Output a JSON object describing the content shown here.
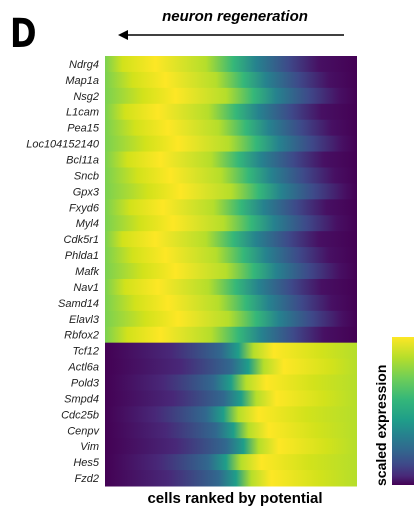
{
  "panel_letter": "D",
  "chart_data": {
    "type": "heatmap",
    "title": "neuron regeneration",
    "xlabel": "cells ranked by potential",
    "colorbar_label": "scaled expression",
    "colormap": "viridis",
    "direction_arrow": "right-to-left",
    "rows": [
      "Ndrg4",
      "Map1a",
      "Nsg2",
      "L1cam",
      "Pea15",
      "Loc104152140",
      "Bcl11a",
      "Sncb",
      "Gpx3",
      "Fxyd6",
      "Myl4",
      "Cdk5r1",
      "Phlda1",
      "Mafk",
      "Nav1",
      "Samd14",
      "Elavl3",
      "Rbfox2",
      "Tcf12",
      "Actl6a",
      "Pold3",
      "Smpd4",
      "Cdc25b",
      "Cenpv",
      "Vim",
      "Hes5",
      "Fzd2"
    ],
    "row_group_up": 18,
    "colors": {
      "low": "#440154",
      "mid": "#21918c",
      "high": "#fde725"
    }
  }
}
